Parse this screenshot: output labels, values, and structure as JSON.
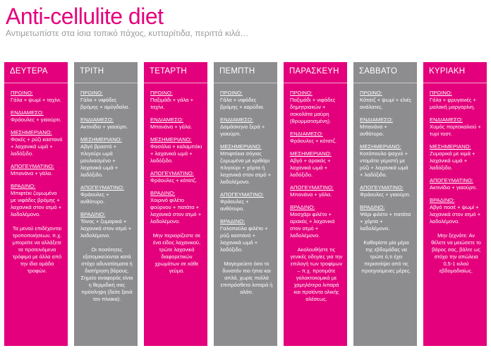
{
  "header": {
    "title": "Anti-cellulite diet",
    "subtitle": "Αντιμετωπίστε στα ίσια τοπικό πάχος, κυτταρίτιδα, περιττά κιλά…"
  },
  "colors": {
    "pink": "#e4007c",
    "gray": "#8d8d8f"
  },
  "days": [
    {
      "name": "ΔΕΥΤΕΡΑ",
      "color": "pink",
      "meals": [
        {
          "title": "ΠΡΩΙΝΟ:",
          "text": "Γάλα + ψωμί + ταχίνι."
        },
        {
          "title": "ΕΝΔΙΑΜΕΣΟ:",
          "text": "Φράουλες + γιαούρτι."
        },
        {
          "title": "ΜΕΣΗΜΕΡΙΑΝΟ:",
          "text": "Φακές + ρύζι καστανό + λαχανικά ωμά + λαδόξιδο."
        },
        {
          "title": "ΑΠΟΓΕΥΜΑΤΙΝΟ:",
          "text": "Μπανάνα + γάλα."
        },
        {
          "title": "ΒΡΑΔΙΝΟ:",
          "text": "Μπιφτέκι ζυμωμένο με νιφάδες βρόμης + λαχανικά στον ατμό + λαδολέμονο."
        }
      ],
      "note": "Τα μενού επιδέχονται τροποποιήσεων, π.χ. μπορείτε να αλλάξετε τα προτεινόμενα τρόφιμα με άλλα από την ίδια ομάδα τροφών."
    },
    {
      "name": "ΤΡΙΤΗ",
      "color": "gray",
      "meals": [
        {
          "title": "ΠΡΩΙΝΟ:",
          "text": "Γάλα + νιφάδες βρόμης + αμύγδαλα."
        },
        {
          "title": "ΕΝΔΙΑΜΕΣΟ:",
          "text": "Ακτινίδιο + γιαούρτι."
        },
        {
          "title": "ΜΕΣΗΜΕΡΙΑΝΟ:",
          "text": "Αβγό βραστό + πλιγούρι ωμά μουλιασμένο + λαχανικά ωμά + λαδόξιδο."
        },
        {
          "title": "ΑΠΟΓΕΥΜΑΤΙΝΟ:",
          "text": "Φράουλες + ανθότυρο."
        },
        {
          "title": "ΒΡΑΔΙΝΟ:",
          "text": "Τόνος + ζυμαρικά + λαχανικά στον ατμό + λαδολέμονο."
        }
      ],
      "note": "Οι ποσότητες εξατομικεύονται κατά στόχο αδυνατίσματα ή διατήρηση βάρους. Σημείο αναφοράς είναι η θερμιδική σας πρόσληψη (δείτε ξανά τον πίνακα)."
    },
    {
      "name": "ΤΕΤΑΡΤΗ",
      "color": "pink",
      "meals": [
        {
          "title": "ΠΡΩΙΝΟ:",
          "text": "Παξιμάδι + γάλα + ταχίνι."
        },
        {
          "title": "ΕΝΔΙΑΜΕΣΟ:",
          "text": "Μπανάνα + γάλα."
        },
        {
          "title": "ΜΕΣΗΜΕΡΙΑΝΟ:",
          "text": "Φασόλια + καλαμπόκι + λαχανικά ωμά + λαδόξιδο."
        },
        {
          "title": "ΑΠΟΓΕΥΜΑΤΙΝΟ:",
          "text": "Φράουλες + κότατζ."
        },
        {
          "title": "ΒΡΑΔΙΝΟ:",
          "text": "Χοιρινό φιλέτο φούρνου + πατάτα + λαχανικά στον ατμό + λαδολέμονο."
        }
      ],
      "note": "Μην περιορίζεστε σε ένα είδος λαχανικού, τρώτε λαχανικά διαφορετικών χρωμάτων σε κάθε γεύμα."
    },
    {
      "name": "ΠΕΜΠΤΗ",
      "color": "gray",
      "meals": [
        {
          "title": "ΠΡΩΙΝΟ:",
          "text": "Γάλα + νιφάδες βρόμης + καρύδια."
        },
        {
          "title": "ΕΝΔΙΑΜΕΣΟ:",
          "text": "Δαμάσκηνα ξερά + γιαούρτι."
        },
        {
          "title": "ΜΕΣΗΜΕΡΙΑΝΟ:",
          "text": "Μπιφτέκια σόγιας ζυμωμένα με κριθάρι πλιγούρι + χόρτα ή λαχανικά στον ατμό + λαδολέμονο."
        },
        {
          "title": "ΑΠΟΓΕΥΜΑΤΙΝΟ:",
          "text": "Φράουλες + ανθότυρο."
        },
        {
          "title": "ΒΡΑΔΙΝΟ:",
          "text": "Γαλοπούλα φιλέτο + ρύζι καστανό + λαχανικά ωμά + λαδόξιδο."
        }
      ],
      "note": "Μαγειρεύετε όσο το δυνατόν πιο ήπια και απλά, χωρίς πολλά επιπρόσθετα λιπαρά ή αλάτι."
    },
    {
      "name": "ΠΑΡΑΣΚΕΥΗ",
      "color": "pink",
      "meals": [
        {
          "title": "ΠΡΩΙΝΟ:",
          "text": "Παξιμάδι + νιφάδες δημητριακών + σοκολάτα μαύρη (θρυμματισμένη)."
        },
        {
          "title": "ΕΝΔΙΑΜΕΣΟ:",
          "text": "Φράουλες + κότατζ."
        },
        {
          "title": "ΜΕΣΗΜΕΡΙΑΝΟ:",
          "text": "Αβγό + αρακάς + λαχανικά ωμά + λαδόξιδο."
        },
        {
          "title": "ΑΠΟΓΕΥΜΑΤΙΝΟ:",
          "text": "Μπανάνα + γάλα."
        },
        {
          "title": "ΒΡΑΔΙΝΟ:",
          "text": "Μοσχάρι φιλέτο + αρακάς + λαχανικά στον ατμό + λαδολέμονο."
        }
      ],
      "note": "Ακολουθήστε τις γενικές οδηγίες για την επιλογή των τροφίμων – π.χ. προτιμάτε γαλακτοκομικά με χαμηλότερα λιπαρά και προϊόντα ολικής αλέσεως."
    },
    {
      "name": "ΣΑΒΒΑΤΟ",
      "color": "gray",
      "meals": [
        {
          "title": "ΠΡΩΙΝΟ:",
          "text": "Κότατζ + ψωμί + ελιές ανάλατες."
        },
        {
          "title": "ΕΝΔΙΑΜΕΣΟ:",
          "text": "Μπανάνα + ανθότυρο."
        },
        {
          "title": "ΜΕΣΗΜΕΡΙΑΝΟ:",
          "text": "Κοτόπουλο ψαχνό + ντομάτα γεμιστή με ρύζι + λαχανικά ωμά + λαδόξιδο."
        },
        {
          "title": "ΑΠΟΓΕΥΜΑΤΙΝΟ:",
          "text": "Φράουλες + γιαούρτι."
        },
        {
          "title": "ΒΡΑΔΙΝΟ:",
          "text": "Ψάρι φιλέτο + πατάτα + χόρτα + λαδολέμονο."
        }
      ],
      "note": "Καθορίστε μία μέρα της εβδομάδας να τρώτε ό,τι έχει περισσέψει από τις προηγούμενες μέρες."
    },
    {
      "name": "ΚΥΡΙΑΚΗ",
      "color": "pink",
      "meals": [
        {
          "title": "ΠΡΩΙΝΟ:",
          "text": "Γάλα + φρυγανιές + μαλακή μαργαρίνη."
        },
        {
          "title": "ΕΝΔΙΑΜΕΣΟ:",
          "text": "Χυμός πορτοκαλιού + τυρί τοστ."
        },
        {
          "title": "ΜΕΣΗΜΕΡΙΑΝΟ:",
          "text": "Ζυμαρικά με κιμά + λαχανικά ωμά + λαδόξιδο."
        },
        {
          "title": "ΑΠΟΓΕΥΜΑΤΙΝΟ:",
          "text": "Ακτινίδιο + γιαούρτι."
        },
        {
          "title": "ΒΡΑΔΙΝΟ:",
          "text": "Αβγό ποσέ + ψωμί + λαχανικά στον ατμό + λαδολέμονο."
        }
      ],
      "note": "Μην ξεχνάτε: Αν θέλετε να μειώσετε το βάρος σας, βάλτε ως στόχο την απώλεια 0,5-1 κιλού εβδομαδιαίως."
    }
  ]
}
